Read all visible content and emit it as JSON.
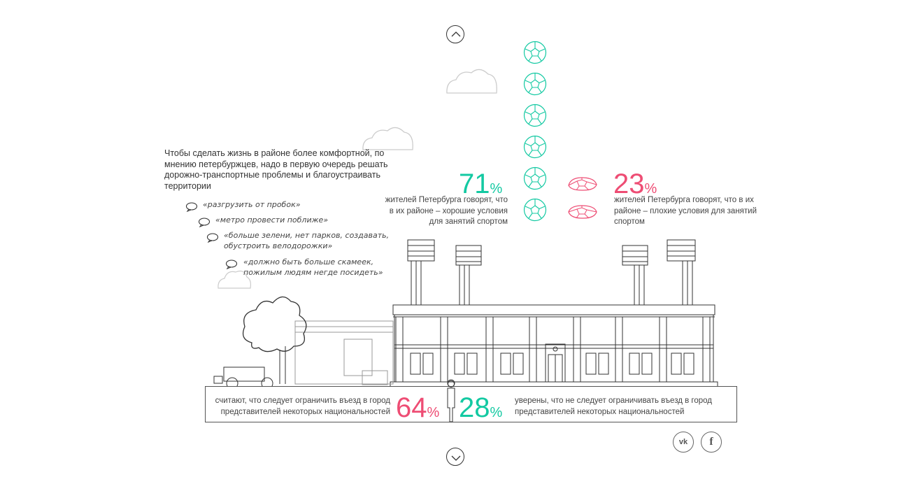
{
  "intro_text": "Чтобы сделать жизнь в районе более комфортной, по мнению петербуржцев, надо в первую очередь решать дорожно-транспортные проблемы и благоустраивать территории",
  "quotes": [
    "«разгрузить от пробок»",
    "«метро провести поближе»",
    "«больше зелени, нет парков, создавать, обустроить велодорожки»",
    "«должно быть больше скамеек, пожилым людям негде посидеть»"
  ],
  "stats": {
    "good": {
      "value": "71",
      "unit": "%",
      "text": "жителей Петербурга говорят, что в их районе – хорошие условия для занятий спортом"
    },
    "bad": {
      "value": "23",
      "unit": "%",
      "text": "жителей Петербурга говорят, что в их районе – плохие условия для занятий спортом"
    }
  },
  "bottom": {
    "restrict": {
      "value": "64",
      "unit": "%",
      "text": "считают, что следует ограничить въезд в город представителей некоторых национальностей"
    },
    "no_restrict": {
      "value": "28",
      "unit": "%",
      "text": "уверены, что не следует ограничивать въезд в город представителей некоторых национальностей"
    }
  },
  "colors": {
    "accent_teal": "#13c9a2",
    "accent_pink": "#ee4d74",
    "line": "#333333",
    "cloud": "#cccccc"
  },
  "icons": {
    "nav_up": "chevron-up-icon",
    "nav_down": "chevron-down-icon",
    "speech": "speech-bubble-icon",
    "ball": "soccer-ball-icon",
    "deflated_ball": "deflated-ball-icon",
    "vk": "vk-icon",
    "facebook": "facebook-icon"
  },
  "social": {
    "vk_label": "vk",
    "fb_label": "f"
  }
}
